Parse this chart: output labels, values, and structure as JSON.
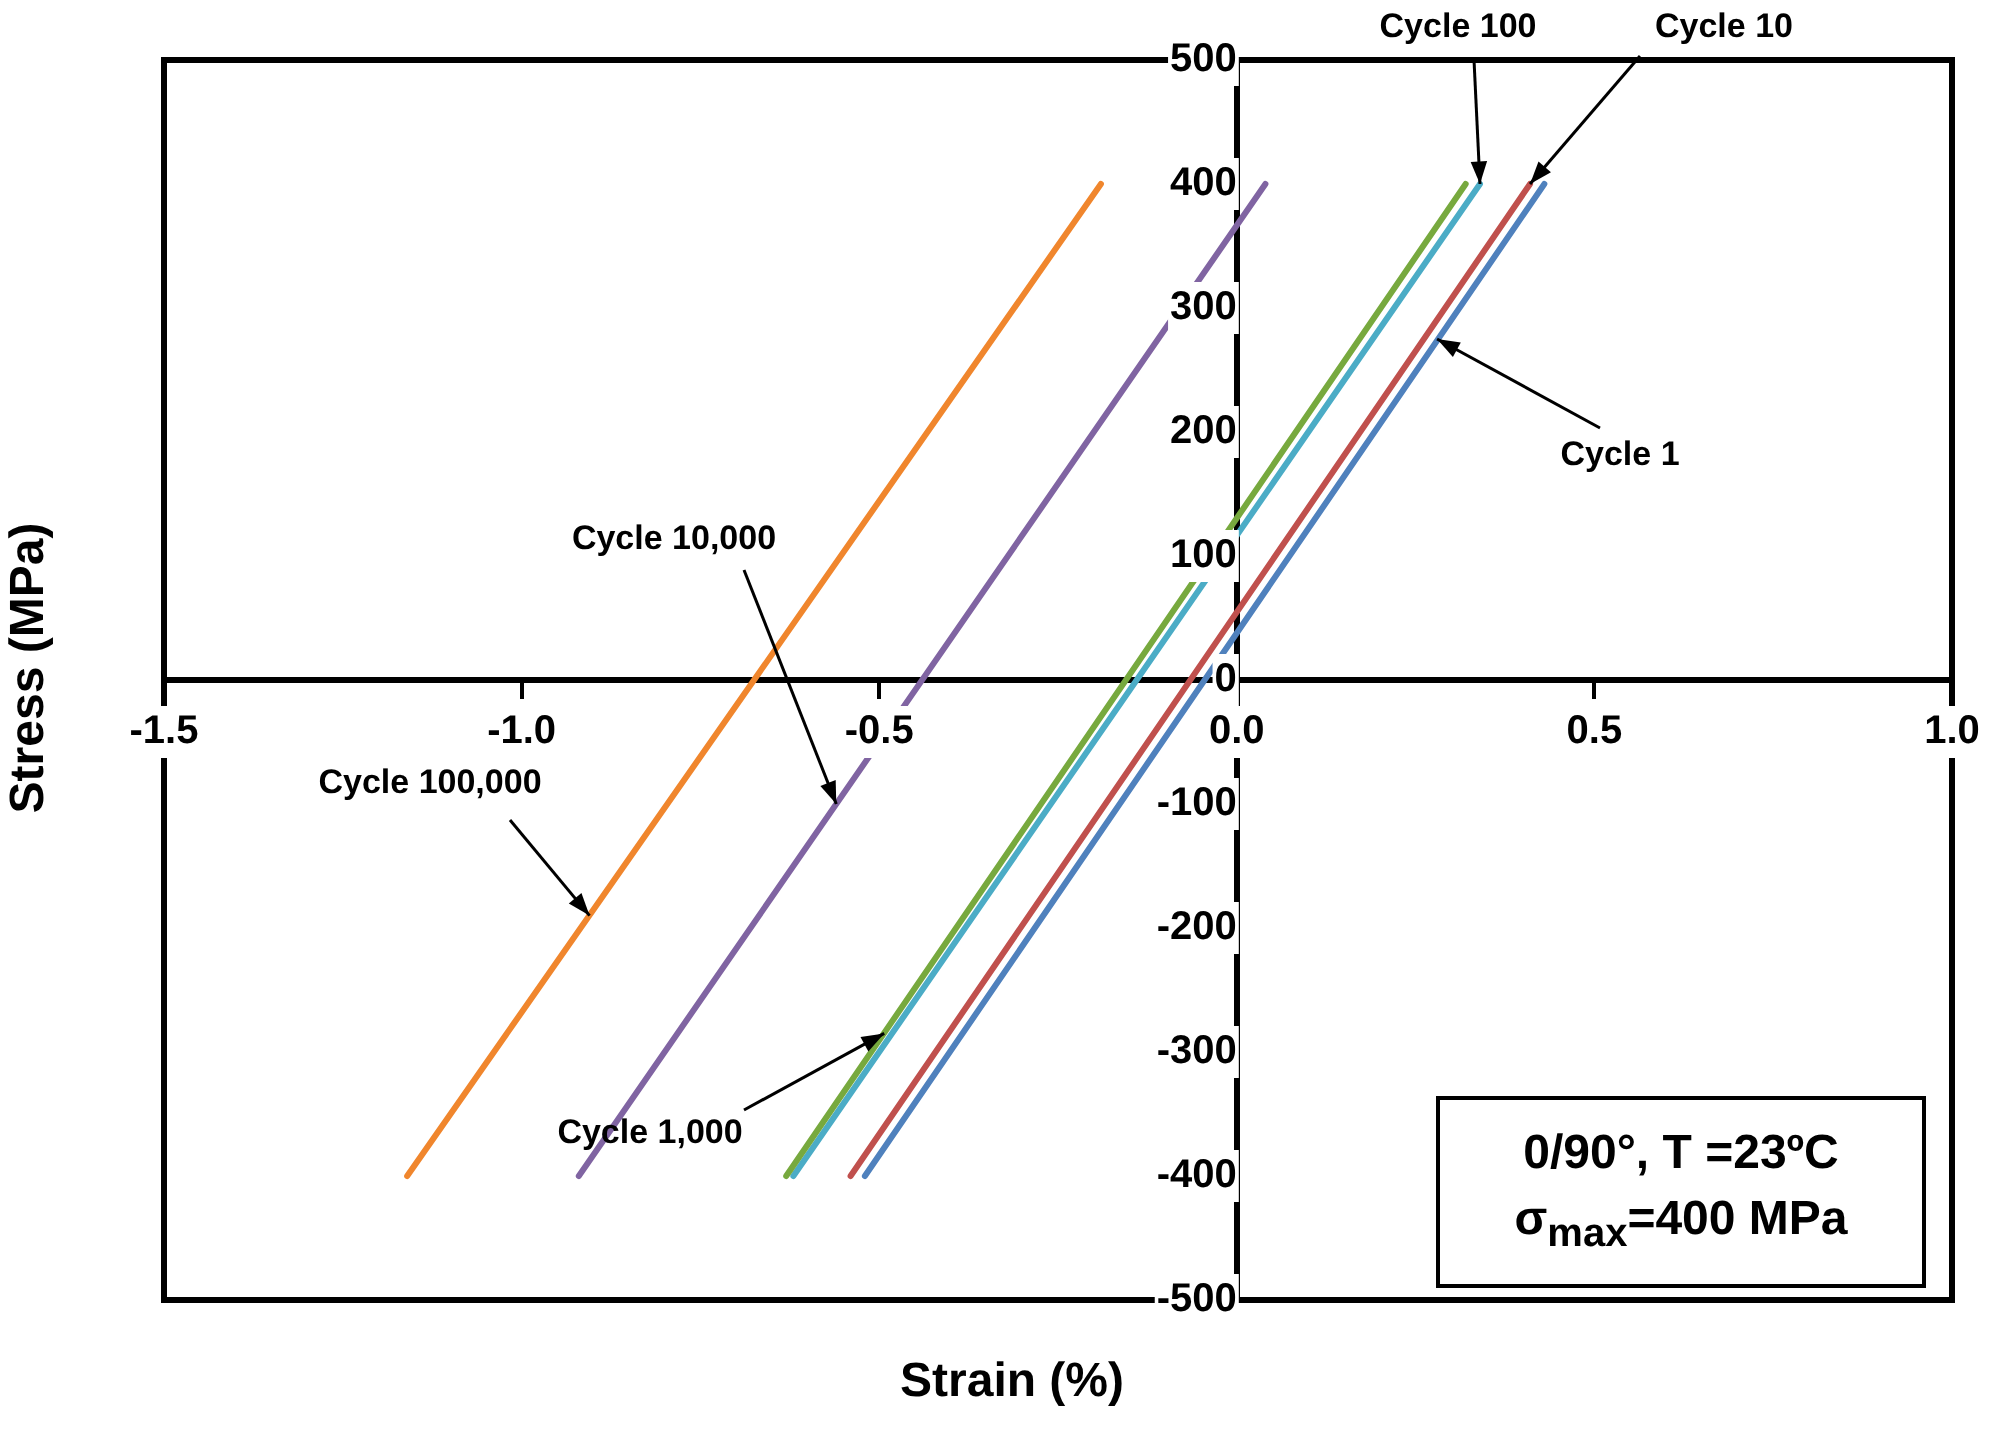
{
  "chart_data": {
    "type": "line",
    "xlabel": "Strain (%)",
    "ylabel": "Stress (MPa)",
    "xlim": [
      -1.5,
      1.0
    ],
    "ylim": [
      -500,
      500
    ],
    "xticks": [
      {
        "value": -1.5,
        "label": "-1.5"
      },
      {
        "value": -1.0,
        "label": "-1.0"
      },
      {
        "value": -0.5,
        "label": "-0.5"
      },
      {
        "value": 0,
        "label": "0.0"
      },
      {
        "value": 0.5,
        "label": "0.5"
      },
      {
        "value": 1.0,
        "label": "1.0"
      }
    ],
    "yticks": [
      -500,
      -400,
      -300,
      -200,
      -100,
      0,
      100,
      200,
      300,
      400,
      500
    ],
    "grid": false,
    "legend": false,
    "marker": "none",
    "line_style": "solid",
    "series": [
      {
        "color": "#f0862d",
        "x": [
          -1.16,
          -0.19
        ],
        "values": [
          -400,
          400
        ]
      },
      {
        "color": "#8064a2",
        "x": [
          -0.92,
          0.04
        ],
        "values": [
          -400,
          400
        ]
      },
      {
        "color": "#77a93e",
        "x": [
          -0.63,
          0.32
        ],
        "values": [
          -400,
          400
        ]
      },
      {
        "color": "#4bacc6",
        "x": [
          -0.62,
          0.34
        ],
        "values": [
          -400,
          400
        ]
      },
      {
        "color": "#c0504d",
        "x": [
          -0.54,
          0.41
        ],
        "values": [
          -400,
          400
        ]
      },
      {
        "color": "#4f81bd",
        "x": [
          -0.52,
          0.43
        ],
        "values": [
          -400,
          400
        ]
      }
    ],
    "annotations": [
      {
        "text": "Cycle 100",
        "x": 0.34,
        "y": 400
      },
      {
        "text": "Cycle 10",
        "x": 0.41,
        "y": 400
      },
      {
        "text": "Cycle 1",
        "x": 0.28,
        "y": 275
      },
      {
        "text": "Cycle 10,000",
        "x": -0.56,
        "y": -100
      },
      {
        "text": "Cycle 100,000",
        "x": -0.905,
        "y": -190
      },
      {
        "text": "Cycle 1,000",
        "x": -0.493,
        "y": -285
      },
      "0/90°, T =23ºC",
      "σ$_{max}$=400 MPa"
    ]
  }
}
